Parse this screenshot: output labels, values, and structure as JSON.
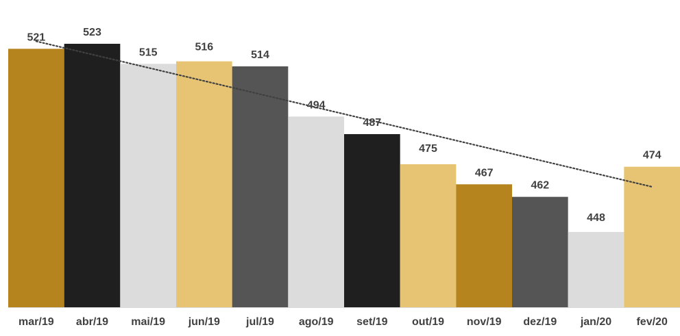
{
  "chart_data": {
    "type": "bar",
    "categories": [
      "mar/19",
      "abr/19",
      "mai/19",
      "jun/19",
      "jul/19",
      "ago/19",
      "set/19",
      "out/19",
      "nov/19",
      "dez/19",
      "jan/20",
      "fev/20"
    ],
    "values": [
      521,
      523,
      515,
      516,
      514,
      494,
      487,
      475,
      467,
      462,
      448,
      474
    ],
    "bar_colors": [
      "#B5841F",
      "#1F1F1F",
      "#DCDCDC",
      "#E6C474",
      "#555555",
      "#DCDCDC",
      "#1F1F1F",
      "#E6C474",
      "#B5841F",
      "#555555",
      "#DCDCDC",
      "#E6C474"
    ],
    "trendline": {
      "style": "dotted",
      "color": "#404040",
      "start": 524,
      "end": 466
    },
    "ylim": [
      418,
      530
    ],
    "title": "",
    "xlabel": "",
    "ylabel": "",
    "grid": false,
    "legend": "none",
    "label_color": "#404040",
    "baseline_color": "#D9D9D9"
  }
}
